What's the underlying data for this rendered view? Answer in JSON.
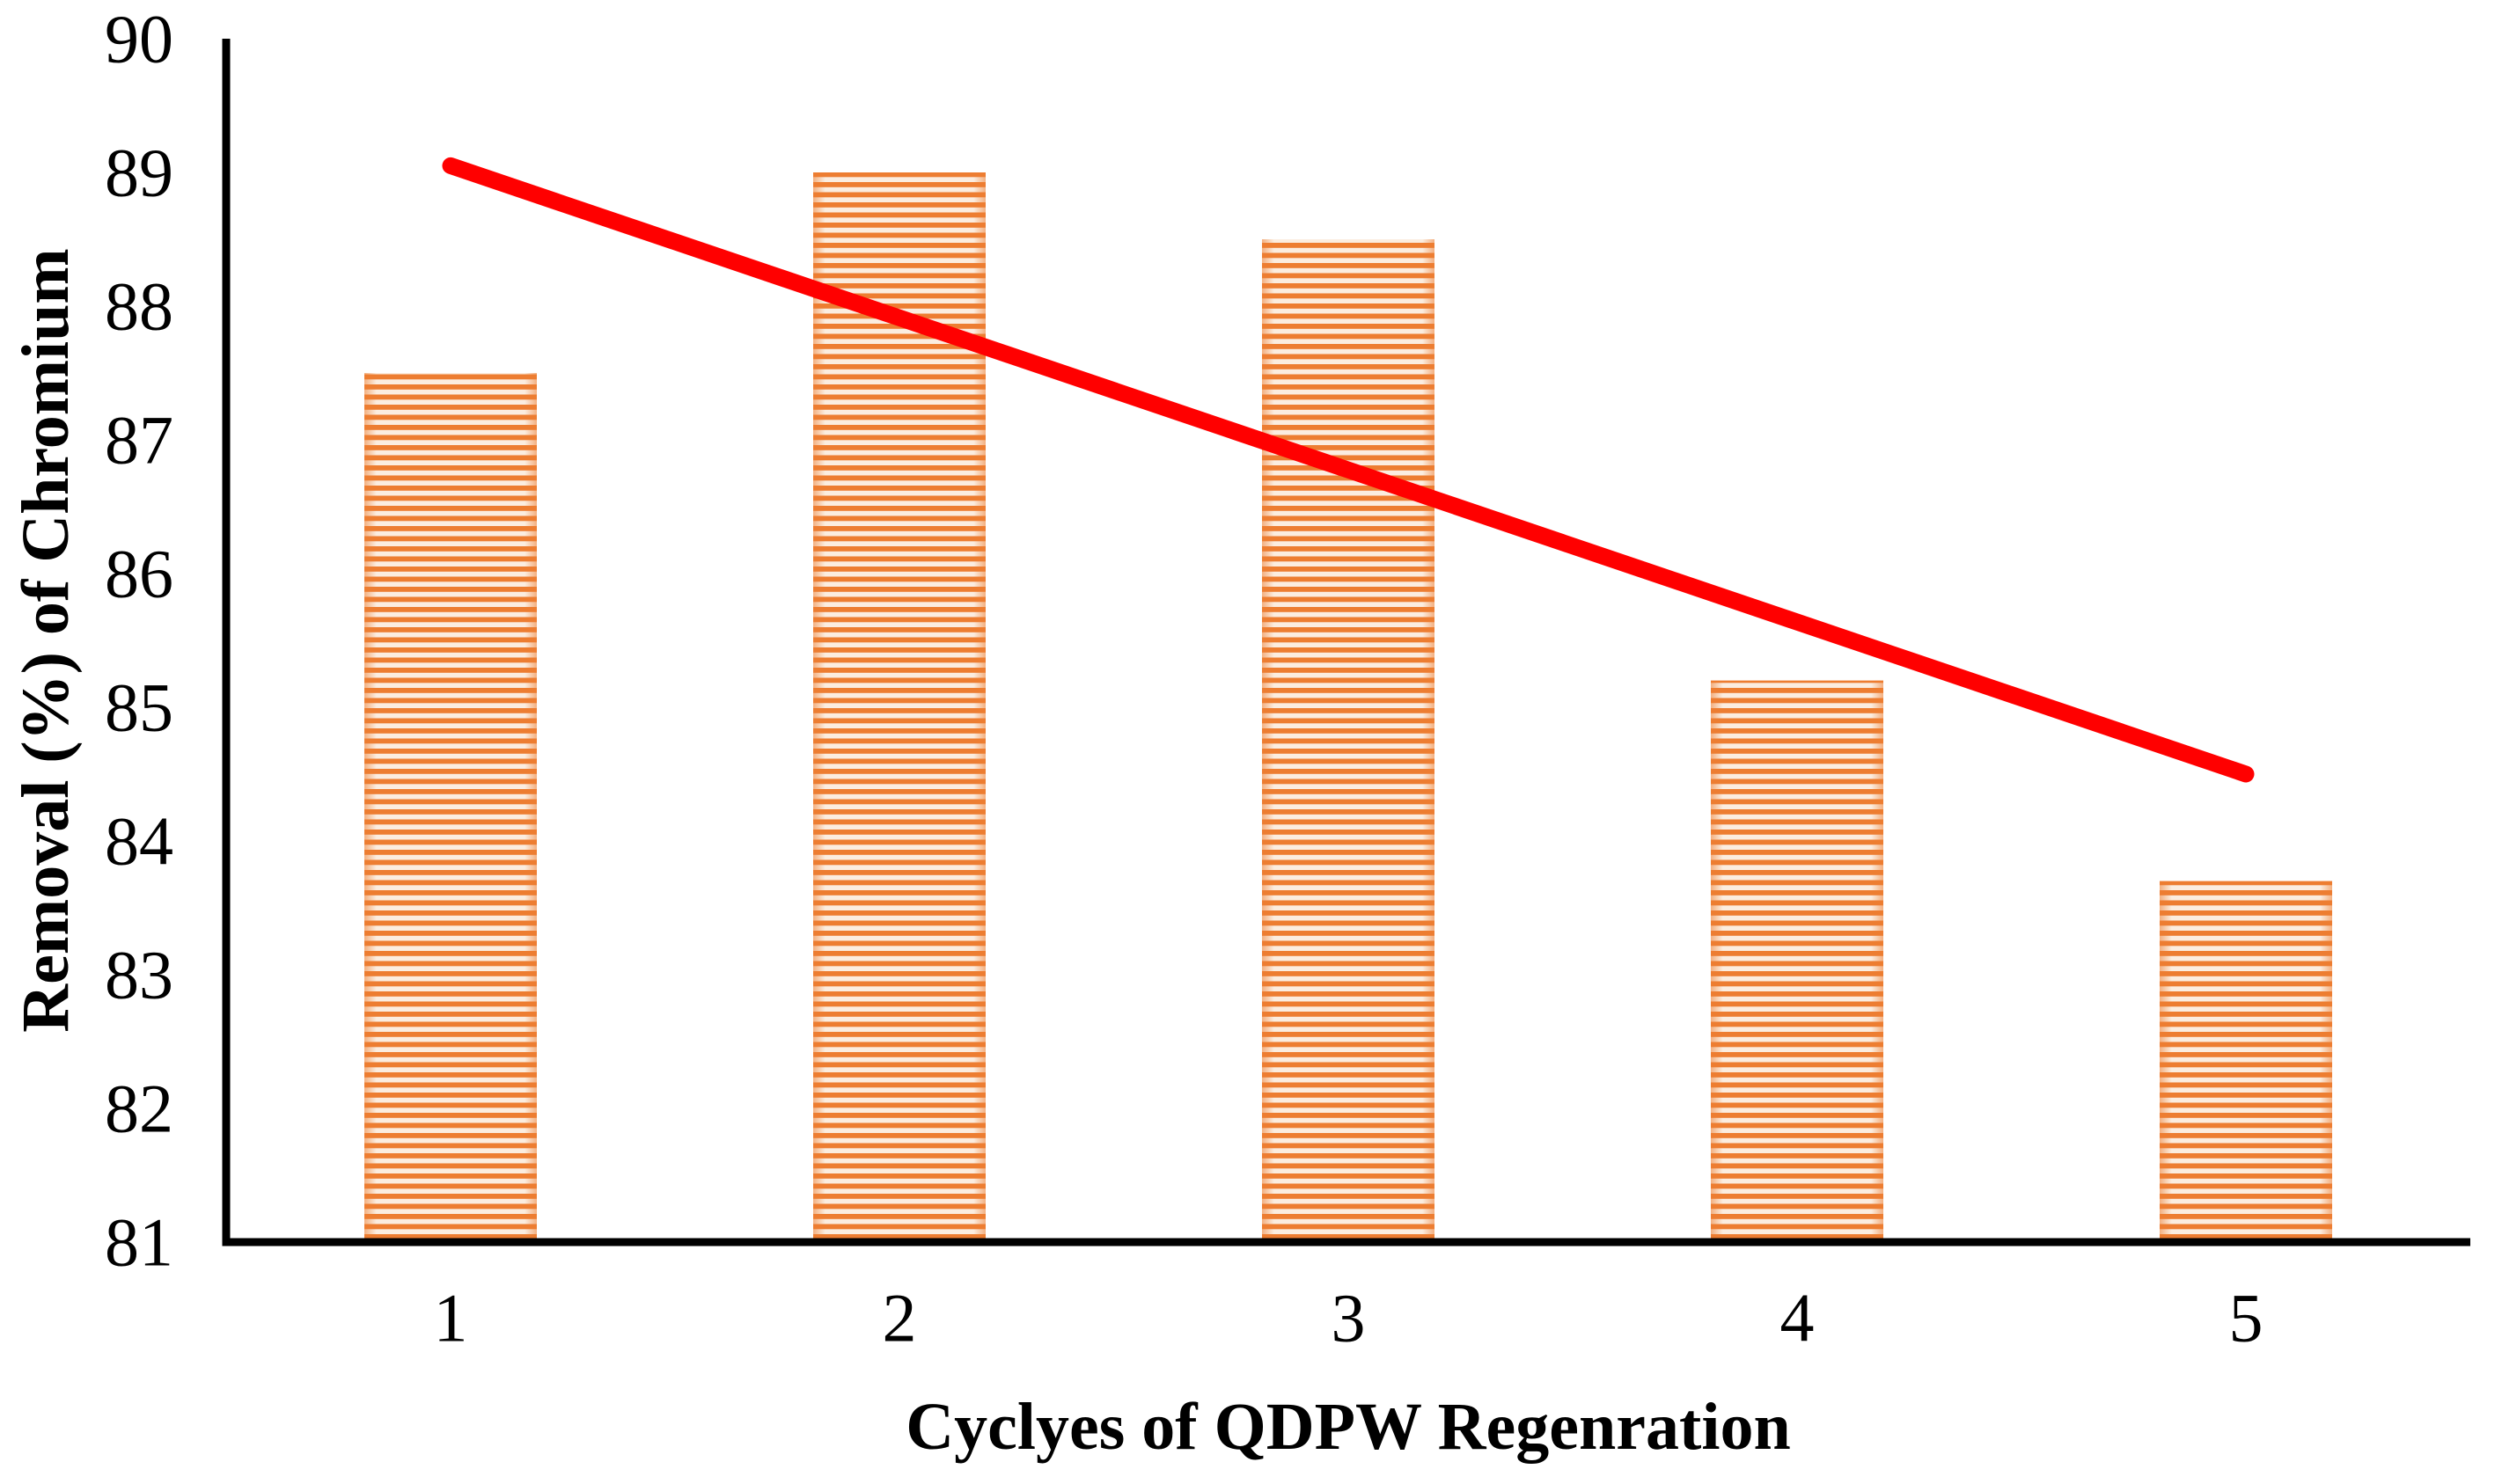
{
  "chart_data": {
    "type": "bar",
    "categories": [
      "1",
      "2",
      "3",
      "4",
      "5"
    ],
    "values": [
      87.5,
      89,
      88.5,
      85.2,
      83.7
    ],
    "xlabel": "Cyclyes of QDPW Regenration",
    "ylabel": "Removal (%) of Chromium",
    "ylim": [
      81,
      90
    ],
    "yticks": [
      90,
      89,
      88,
      87,
      86,
      85,
      84,
      83,
      82,
      81
    ],
    "grid": false,
    "legend": false,
    "bar_pattern": "horizontal-stripes",
    "bar_color": "#ED7D31",
    "bar_stripe_bg": "#FBEDE0",
    "trendline": {
      "type": "linear",
      "x": [
        1,
        5
      ],
      "y": [
        89.05,
        84.5
      ],
      "color": "#FF0000"
    },
    "axis_color": "#000000",
    "background": "#FFFFFF"
  }
}
